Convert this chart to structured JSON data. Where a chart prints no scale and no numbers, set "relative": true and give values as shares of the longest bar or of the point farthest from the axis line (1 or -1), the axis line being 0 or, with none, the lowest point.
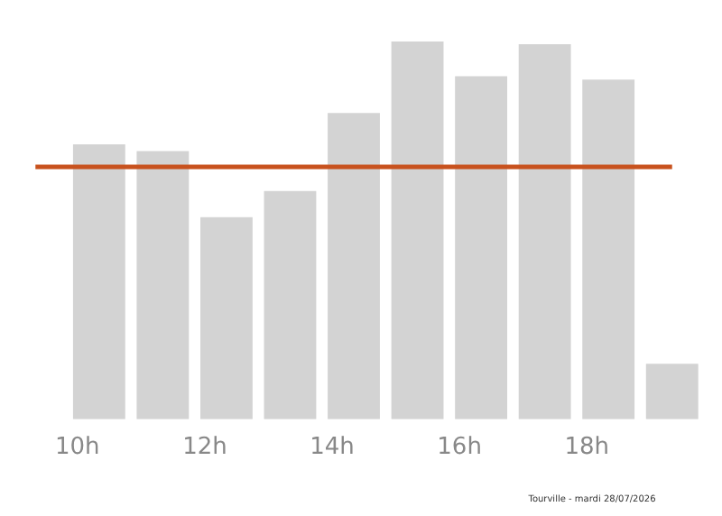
{
  "chart_data": {
    "type": "bar",
    "relative": true,
    "categories": [
      null,
      "10h",
      null,
      "12h",
      null,
      "14h",
      null,
      "16h",
      null,
      "18h",
      null
    ],
    "values": [
      0,
      0.728,
      0.71,
      0.535,
      0.604,
      0.811,
      1,
      0.908,
      0.993,
      0.899,
      0.147
    ],
    "color": "#d3d3d3",
    "grid": false,
    "legend": false,
    "ref_lines": [
      {
        "axis": "y",
        "value": 0.668,
        "color": "#c8521e"
      }
    ],
    "annotations": [
      "Tourville - mardi 28/07/2026"
    ]
  }
}
